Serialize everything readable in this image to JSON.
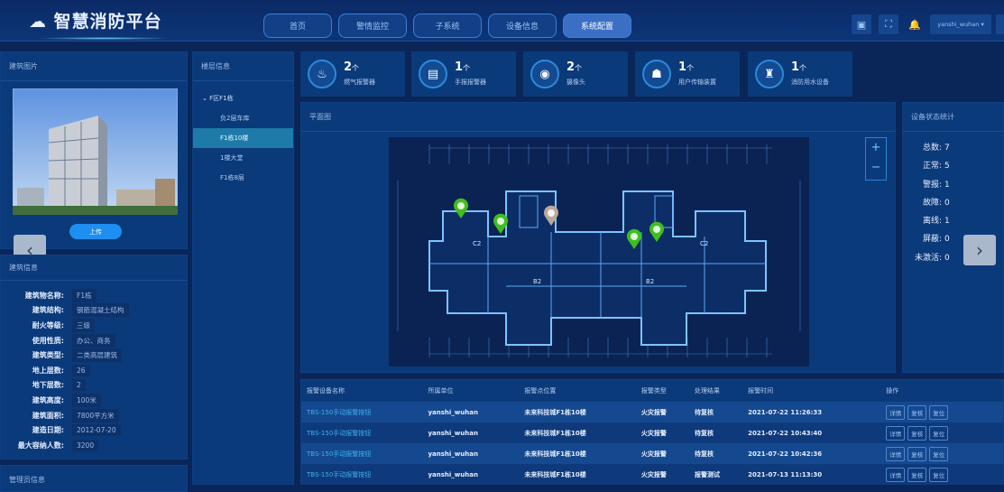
{
  "header": {
    "title": "智慧消防平台",
    "nav": [
      {
        "label": "首页"
      },
      {
        "label": "警情监控"
      },
      {
        "label": "子系统"
      },
      {
        "label": "设备信息"
      },
      {
        "label": "系统配置",
        "active": true
      }
    ],
    "user": "yanshi_wuhan"
  },
  "building_photo": {
    "title": "建筑图片",
    "upload_label": "上传"
  },
  "building_info": {
    "title": "建筑信息",
    "rows": [
      {
        "k": "建筑物名称:",
        "v": "F1栋"
      },
      {
        "k": "建筑结构:",
        "v": "钢筋混凝土结构"
      },
      {
        "k": "耐火等级:",
        "v": "三级"
      },
      {
        "k": "使用性质:",
        "v": "办公、商务"
      },
      {
        "k": "建筑类型:",
        "v": "二类高层建筑"
      },
      {
        "k": "地上层数:",
        "v": "26"
      },
      {
        "k": "地下层数:",
        "v": "2"
      },
      {
        "k": "建筑高度:",
        "v": "100米"
      },
      {
        "k": "建筑面积:",
        "v": "7800平方米"
      },
      {
        "k": "建造日期:",
        "v": "2012-07-20"
      },
      {
        "k": "最大容纳人数:",
        "v": "3200"
      }
    ]
  },
  "manager": {
    "title": "管理员信息"
  },
  "floors": {
    "title": "楼层信息",
    "root": "F区F1栋",
    "items": [
      {
        "label": "负2层车库"
      },
      {
        "label": "F1栋10楼",
        "selected": true
      },
      {
        "label": "1楼大堂"
      },
      {
        "label": "F1栋8层"
      }
    ]
  },
  "devices": [
    {
      "count": "2",
      "unit": "个",
      "label": "燃气报警器",
      "icon": "gas-alarm-icon"
    },
    {
      "count": "1",
      "unit": "个",
      "label": "手报报警器",
      "icon": "manual-alarm-icon"
    },
    {
      "count": "2",
      "unit": "个",
      "label": "摄像头",
      "icon": "camera-icon"
    },
    {
      "count": "1",
      "unit": "个",
      "label": "用户传输装置",
      "icon": "transmission-icon"
    },
    {
      "count": "1",
      "unit": "个",
      "label": "消防用水设备",
      "icon": "hydrant-icon"
    }
  ],
  "plan": {
    "title": "平面图",
    "zoom_in": "+",
    "zoom_out": "−",
    "markers": [
      {
        "status": "normal",
        "color": "#3fbf1f"
      },
      {
        "status": "normal",
        "color": "#3fbf1f"
      },
      {
        "status": "offline",
        "color": "#b9a99a"
      },
      {
        "status": "normal",
        "color": "#3fbf1f"
      },
      {
        "status": "normal",
        "color": "#3fbf1f"
      }
    ]
  },
  "status": {
    "title": "设备状态统计",
    "items": [
      {
        "k": "总数:",
        "v": "7"
      },
      {
        "k": "正常:",
        "v": "5"
      },
      {
        "k": "警报:",
        "v": "1"
      },
      {
        "k": "故障:",
        "v": "0"
      },
      {
        "k": "离线:",
        "v": "1"
      },
      {
        "k": "屏蔽:",
        "v": "0"
      },
      {
        "k": "未激活:",
        "v": "0"
      }
    ]
  },
  "alarms": {
    "columns": [
      "报警设备名称",
      "所属单位",
      "报警点位置",
      "报警类型",
      "处理结果",
      "报警时间",
      "操作"
    ],
    "actions": [
      "详情",
      "复核",
      "复位"
    ],
    "rows": [
      [
        "TBS-150手动报警按钮",
        "yanshi_wuhan",
        "未来科技城F1栋10楼",
        "火灾报警",
        "待复核",
        "2021-07-22 11:26:33"
      ],
      [
        "TBS-150手动报警按钮",
        "yanshi_wuhan",
        "未来科技城F1栋10楼",
        "火灾报警",
        "待复核",
        "2021-07-22 10:43:40"
      ],
      [
        "TBS-150手动报警按钮",
        "yanshi_wuhan",
        "未来科技城F1栋10楼",
        "火灾报警",
        "待复核",
        "2021-07-22 10:42:36"
      ],
      [
        "TBS-150手动报警按钮",
        "yanshi_wuhan",
        "未来科技城F1栋10楼",
        "火灾报警",
        "报警测试",
        "2021-07-13 11:13:30"
      ]
    ]
  },
  "colors": {
    "bg": "#0a2558",
    "panel": "#0b3a7a",
    "accent": "#3fb0ee",
    "marker_normal": "#3fbf1f"
  }
}
